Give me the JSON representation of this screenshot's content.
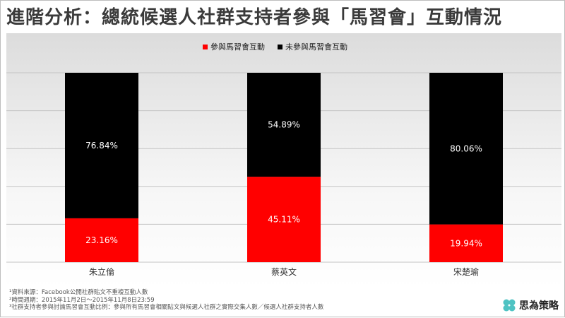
{
  "title": "進階分析：總統候選人社群支持者參與「馬習會」互動情況",
  "legend": [
    {
      "label": "參與馬習會互動",
      "color": "#ff0000"
    },
    {
      "label": "未參與馬習會互動",
      "color": "#000000"
    }
  ],
  "chart_data": {
    "type": "bar",
    "stacked": true,
    "categories": [
      "朱立倫",
      "蔡英文",
      "宋楚瑜"
    ],
    "series": [
      {
        "name": "參與馬習會互動",
        "values": [
          23.16,
          45.11,
          19.94
        ],
        "labels": [
          "23.16%",
          "45.11%",
          "19.94%"
        ],
        "color": "#ff0000"
      },
      {
        "name": "未參與馬習會互動",
        "values": [
          76.84,
          54.89,
          80.06
        ],
        "labels": [
          "76.84%",
          "54.89%",
          "80.06%"
        ],
        "color": "#000000"
      }
    ],
    "ylim": [
      0,
      100
    ],
    "grid": true
  },
  "footnotes": [
    "¹資料來源：Facebook公開社群貼文不重複互動人數",
    "²時間週期：2015年11月2日～2015年11月8日23:59",
    "³社群支持者參與討論馬習會互動比例：參與所有馬習會相關貼文與候選人社群之實際交集人數／候選人社群支持者人數"
  ],
  "brand": {
    "name": "思為策略",
    "icon": "four-leaf-clover-icon",
    "color": "#4fc3c3"
  }
}
